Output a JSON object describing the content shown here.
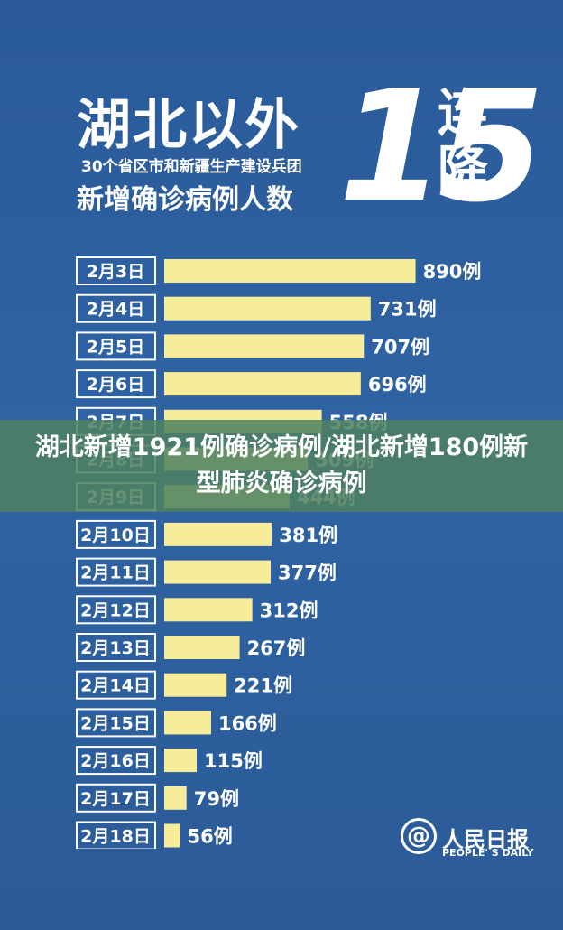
{
  "header": {
    "title": "湖北以外",
    "subtitle_line1": "30个省区市和新疆生产建设兵团",
    "subtitle_line2": "新增确诊病例人数",
    "big_number": "15",
    "streak_word": "连降"
  },
  "overlay": {
    "caption": "湖北新增1921例确诊病例/湖北新增180例新型肺炎确诊病例"
  },
  "brand": {
    "logo_glyph": "@",
    "name_cn": "人民日报",
    "name_en": "PEOPLE' S DAILY"
  },
  "colors": {
    "background": "#2f5e9a",
    "bar": "#f7ec9a",
    "label_box": "#ffffff",
    "text": "#ffffff"
  },
  "chart_data": {
    "type": "bar",
    "orientation": "horizontal",
    "categories": [
      "2月3日",
      "2月4日",
      "2月5日",
      "2月6日",
      "2月7日",
      "2月8日",
      "2月9日",
      "2月10日",
      "2月11日",
      "2月12日",
      "2月13日",
      "2月14日",
      "2月15日",
      "2月16日",
      "2月17日",
      "2月18日"
    ],
    "values": [
      890,
      731,
      707,
      696,
      558,
      509,
      444,
      381,
      377,
      312,
      267,
      221,
      166,
      115,
      79,
      56
    ],
    "value_labels": [
      "890例",
      "731例",
      "707例",
      "696例",
      "558例",
      "509例",
      "444例",
      "381例",
      "377例",
      "312例",
      "267例",
      "221例",
      "166例",
      "115例",
      "79例",
      "56例"
    ],
    "unit": "例",
    "xlim": [
      0,
      1000
    ]
  }
}
